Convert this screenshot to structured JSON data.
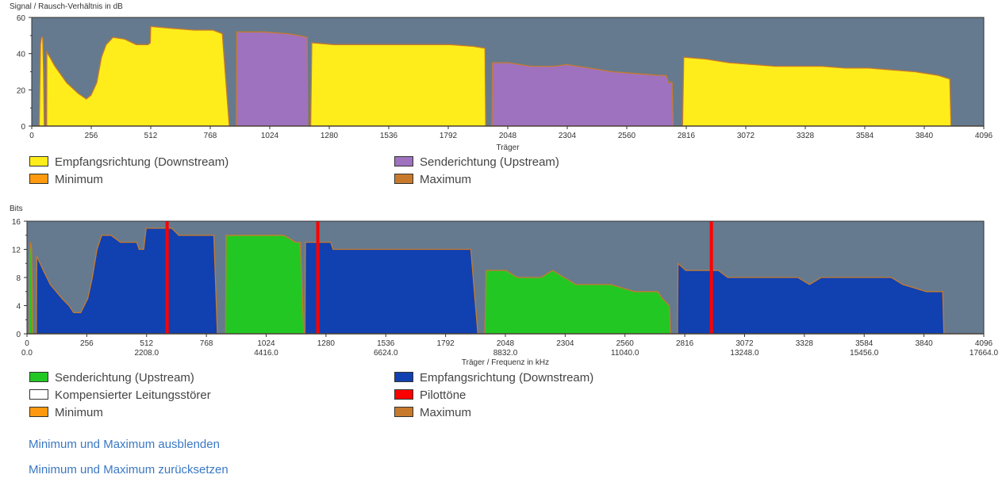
{
  "colors": {
    "plot_bg": "#657a8e",
    "downstream_snr": "#ffed1b",
    "upstream_snr": "#9e72be",
    "downstream_bits": "#1140b0",
    "upstream_bits": "#23c723",
    "pilot": "#ff0000",
    "minimum": "#ff9a10",
    "maximum": "#c77a2c",
    "compensated": "#ffffff"
  },
  "links": {
    "hide_minmax": "Minimum und Maximum ausblenden",
    "reset_minmax": "Minimum und Maximum zurücksetzen"
  },
  "chart_data": [
    {
      "type": "area",
      "title": "Signal / Rausch-Verhältnis in dB",
      "xlabel": "Träger",
      "ylabel": "Signal / Rausch-Verhältnis in dB",
      "xlim": [
        0,
        4096
      ],
      "ylim": [
        0,
        60
      ],
      "x_ticks": [
        "0",
        "256",
        "512",
        "768",
        "1024",
        "1280",
        "1536",
        "1792",
        "2048",
        "2304",
        "2560",
        "2816",
        "3072",
        "3328",
        "3584",
        "3840",
        "4096"
      ],
      "y_ticks": [
        "0",
        "20",
        "40",
        "60"
      ],
      "legend": [
        {
          "label": "Empfangsrichtung (Downstream)",
          "color_key": "downstream_snr"
        },
        {
          "label": "Senderichtung (Upstream)",
          "color_key": "upstream_snr"
        },
        {
          "label": "Minimum",
          "color_key": "minimum"
        },
        {
          "label": "Maximum",
          "color_key": "maximum"
        }
      ],
      "series": [
        {
          "name": "Empfangsrichtung (Downstream)",
          "color_key": "downstream_snr",
          "segments": [
            [
              [
                32,
                0
              ],
              [
                38,
                45
              ],
              [
                42,
                49
              ],
              [
                47,
                49
              ],
              [
                51,
                30
              ],
              [
                54,
                0
              ]
            ],
            [
              [
                64,
                0
              ],
              [
                65,
                41
              ],
              [
                100,
                33
              ],
              [
                150,
                24
              ],
              [
                200,
                18
              ],
              [
                235,
                15
              ],
              [
                255,
                17
              ],
              [
                280,
                24
              ],
              [
                300,
                38
              ],
              [
                320,
                45
              ],
              [
                350,
                49
              ],
              [
                400,
                48
              ],
              [
                450,
                45
              ],
              [
                500,
                45
              ],
              [
                510,
                46
              ],
              [
                512,
                55
              ],
              [
                600,
                54
              ],
              [
                700,
                53
              ],
              [
                780,
                53
              ],
              [
                820,
                51
              ],
              [
                850,
                0
              ]
            ],
            [
              [
                1200,
                0
              ],
              [
                1205,
                46
              ],
              [
                1300,
                45
              ],
              [
                1400,
                45
              ],
              [
                1500,
                45
              ],
              [
                1600,
                45
              ],
              [
                1700,
                45
              ],
              [
                1800,
                45
              ],
              [
                1900,
                44
              ],
              [
                1950,
                43
              ],
              [
                1953,
                0
              ]
            ],
            [
              [
                2800,
                0
              ],
              [
                2805,
                38
              ],
              [
                2900,
                37
              ],
              [
                3000,
                35
              ],
              [
                3100,
                34
              ],
              [
                3200,
                33
              ],
              [
                3300,
                33
              ],
              [
                3400,
                33
              ],
              [
                3500,
                32
              ],
              [
                3600,
                32
              ],
              [
                3700,
                31
              ],
              [
                3800,
                30
              ],
              [
                3900,
                28
              ],
              [
                3950,
                26
              ],
              [
                3955,
                0
              ]
            ]
          ]
        },
        {
          "name": "Senderichtung (Upstream)",
          "color_key": "upstream_snr",
          "segments": [
            [
              [
                880,
                0
              ],
              [
                882,
                52
              ],
              [
                1000,
                52
              ],
              [
                1100,
                51
              ],
              [
                1150,
                50
              ],
              [
                1185,
                49
              ],
              [
                1188,
                0
              ]
            ],
            [
              [
                1980,
                0
              ],
              [
                1982,
                35
              ],
              [
                2050,
                35
              ],
              [
                2150,
                33
              ],
              [
                2250,
                33
              ],
              [
                2300,
                34
              ],
              [
                2400,
                32
              ],
              [
                2500,
                30
              ],
              [
                2600,
                29
              ],
              [
                2700,
                28
              ],
              [
                2730,
                28
              ],
              [
                2740,
                24
              ],
              [
                2755,
                24
              ],
              [
                2760,
                0
              ]
            ]
          ]
        }
      ]
    },
    {
      "type": "area",
      "title": "Bits",
      "xlabel": "Träger / Frequenz in kHz",
      "ylabel": "Bits",
      "xlim": [
        0,
        4096
      ],
      "ylim": [
        0,
        16
      ],
      "x_ticks": [
        "0",
        "256",
        "512",
        "768",
        "1024",
        "1280",
        "1536",
        "1792",
        "2048",
        "2304",
        "2560",
        "2816",
        "3072",
        "3328",
        "3584",
        "3840",
        "4096"
      ],
      "freq_ticks": [
        {
          "x": 0,
          "label": "0.0"
        },
        {
          "x": 512,
          "label": "2208.0"
        },
        {
          "x": 1024,
          "label": "4416.0"
        },
        {
          "x": 1536,
          "label": "6624.0"
        },
        {
          "x": 2048,
          "label": "8832.0"
        },
        {
          "x": 2560,
          "label": "11040.0"
        },
        {
          "x": 3072,
          "label": "13248.0"
        },
        {
          "x": 3584,
          "label": "15456.0"
        },
        {
          "x": 4096,
          "label": "17664.0"
        }
      ],
      "y_ticks": [
        "0",
        "4",
        "8",
        "12",
        "16"
      ],
      "legend": [
        {
          "label": "Senderichtung (Upstream)",
          "color_key": "upstream_bits"
        },
        {
          "label": "Empfangsrichtung (Downstream)",
          "color_key": "downstream_bits"
        },
        {
          "label": "Kompensierter Leitungsstörer",
          "color_key": "compensated"
        },
        {
          "label": "Pilottöne",
          "color_key": "pilot"
        },
        {
          "label": "Minimum",
          "color_key": "minimum"
        },
        {
          "label": "Maximum",
          "color_key": "maximum"
        }
      ],
      "pilot_tones": [
        600,
        1245,
        2930
      ],
      "series": [
        {
          "name": "Senderichtung (Upstream)",
          "color_key": "upstream_bits",
          "segments": [
            [
              [
                10,
                0
              ],
              [
                12,
                11
              ],
              [
                15,
                13
              ],
              [
                20,
                12
              ],
              [
                25,
                0
              ]
            ],
            [
              [
                850,
                0
              ],
              [
                852,
                14
              ],
              [
                1000,
                14
              ],
              [
                1100,
                14
              ],
              [
                1150,
                13
              ],
              [
                1170,
                13
              ],
              [
                1185,
                0
              ]
            ],
            [
              [
                1960,
                0
              ],
              [
                1965,
                9
              ],
              [
                2050,
                9
              ],
              [
                2100,
                8
              ],
              [
                2200,
                8
              ],
              [
                2250,
                9
              ],
              [
                2300,
                8
              ],
              [
                2350,
                7
              ],
              [
                2500,
                7
              ],
              [
                2600,
                6
              ],
              [
                2700,
                6
              ],
              [
                2720,
                5
              ],
              [
                2750,
                4
              ],
              [
                2755,
                0
              ]
            ]
          ]
        },
        {
          "name": "Empfangsrichtung (Downstream)",
          "color_key": "downstream_bits",
          "segments": [
            [
              [
                40,
                0
              ],
              [
                42,
                11
              ],
              [
                70,
                9
              ],
              [
                100,
                7
              ],
              [
                150,
                5
              ],
              [
                180,
                4
              ],
              [
                200,
                3
              ],
              [
                230,
                3
              ],
              [
                260,
                5
              ],
              [
                280,
                8
              ],
              [
                300,
                12
              ],
              [
                320,
                14
              ],
              [
                360,
                14
              ],
              [
                400,
                13
              ],
              [
                470,
                13
              ],
              [
                480,
                12
              ],
              [
                500,
                12
              ],
              [
                510,
                15
              ],
              [
                550,
                15
              ],
              [
                620,
                15
              ],
              [
                650,
                14
              ],
              [
                800,
                14
              ],
              [
                815,
                0
              ]
            ],
            [
              [
                1190,
                0
              ],
              [
                1192,
                13
              ],
              [
                1250,
                13
              ],
              [
                1300,
                13
              ],
              [
                1310,
                12
              ],
              [
                1500,
                12
              ],
              [
                1900,
                12
              ],
              [
                1930,
                0
              ]
            ],
            [
              [
                2785,
                0
              ],
              [
                2787,
                10
              ],
              [
                2820,
                9
              ],
              [
                2900,
                9
              ],
              [
                2960,
                9
              ],
              [
                3000,
                8
              ],
              [
                3300,
                8
              ],
              [
                3350,
                7
              ],
              [
                3400,
                8
              ],
              [
                3500,
                8
              ],
              [
                3700,
                8
              ],
              [
                3750,
                7
              ],
              [
                3850,
                6
              ],
              [
                3920,
                6
              ],
              [
                3925,
                0
              ]
            ]
          ]
        }
      ]
    }
  ]
}
